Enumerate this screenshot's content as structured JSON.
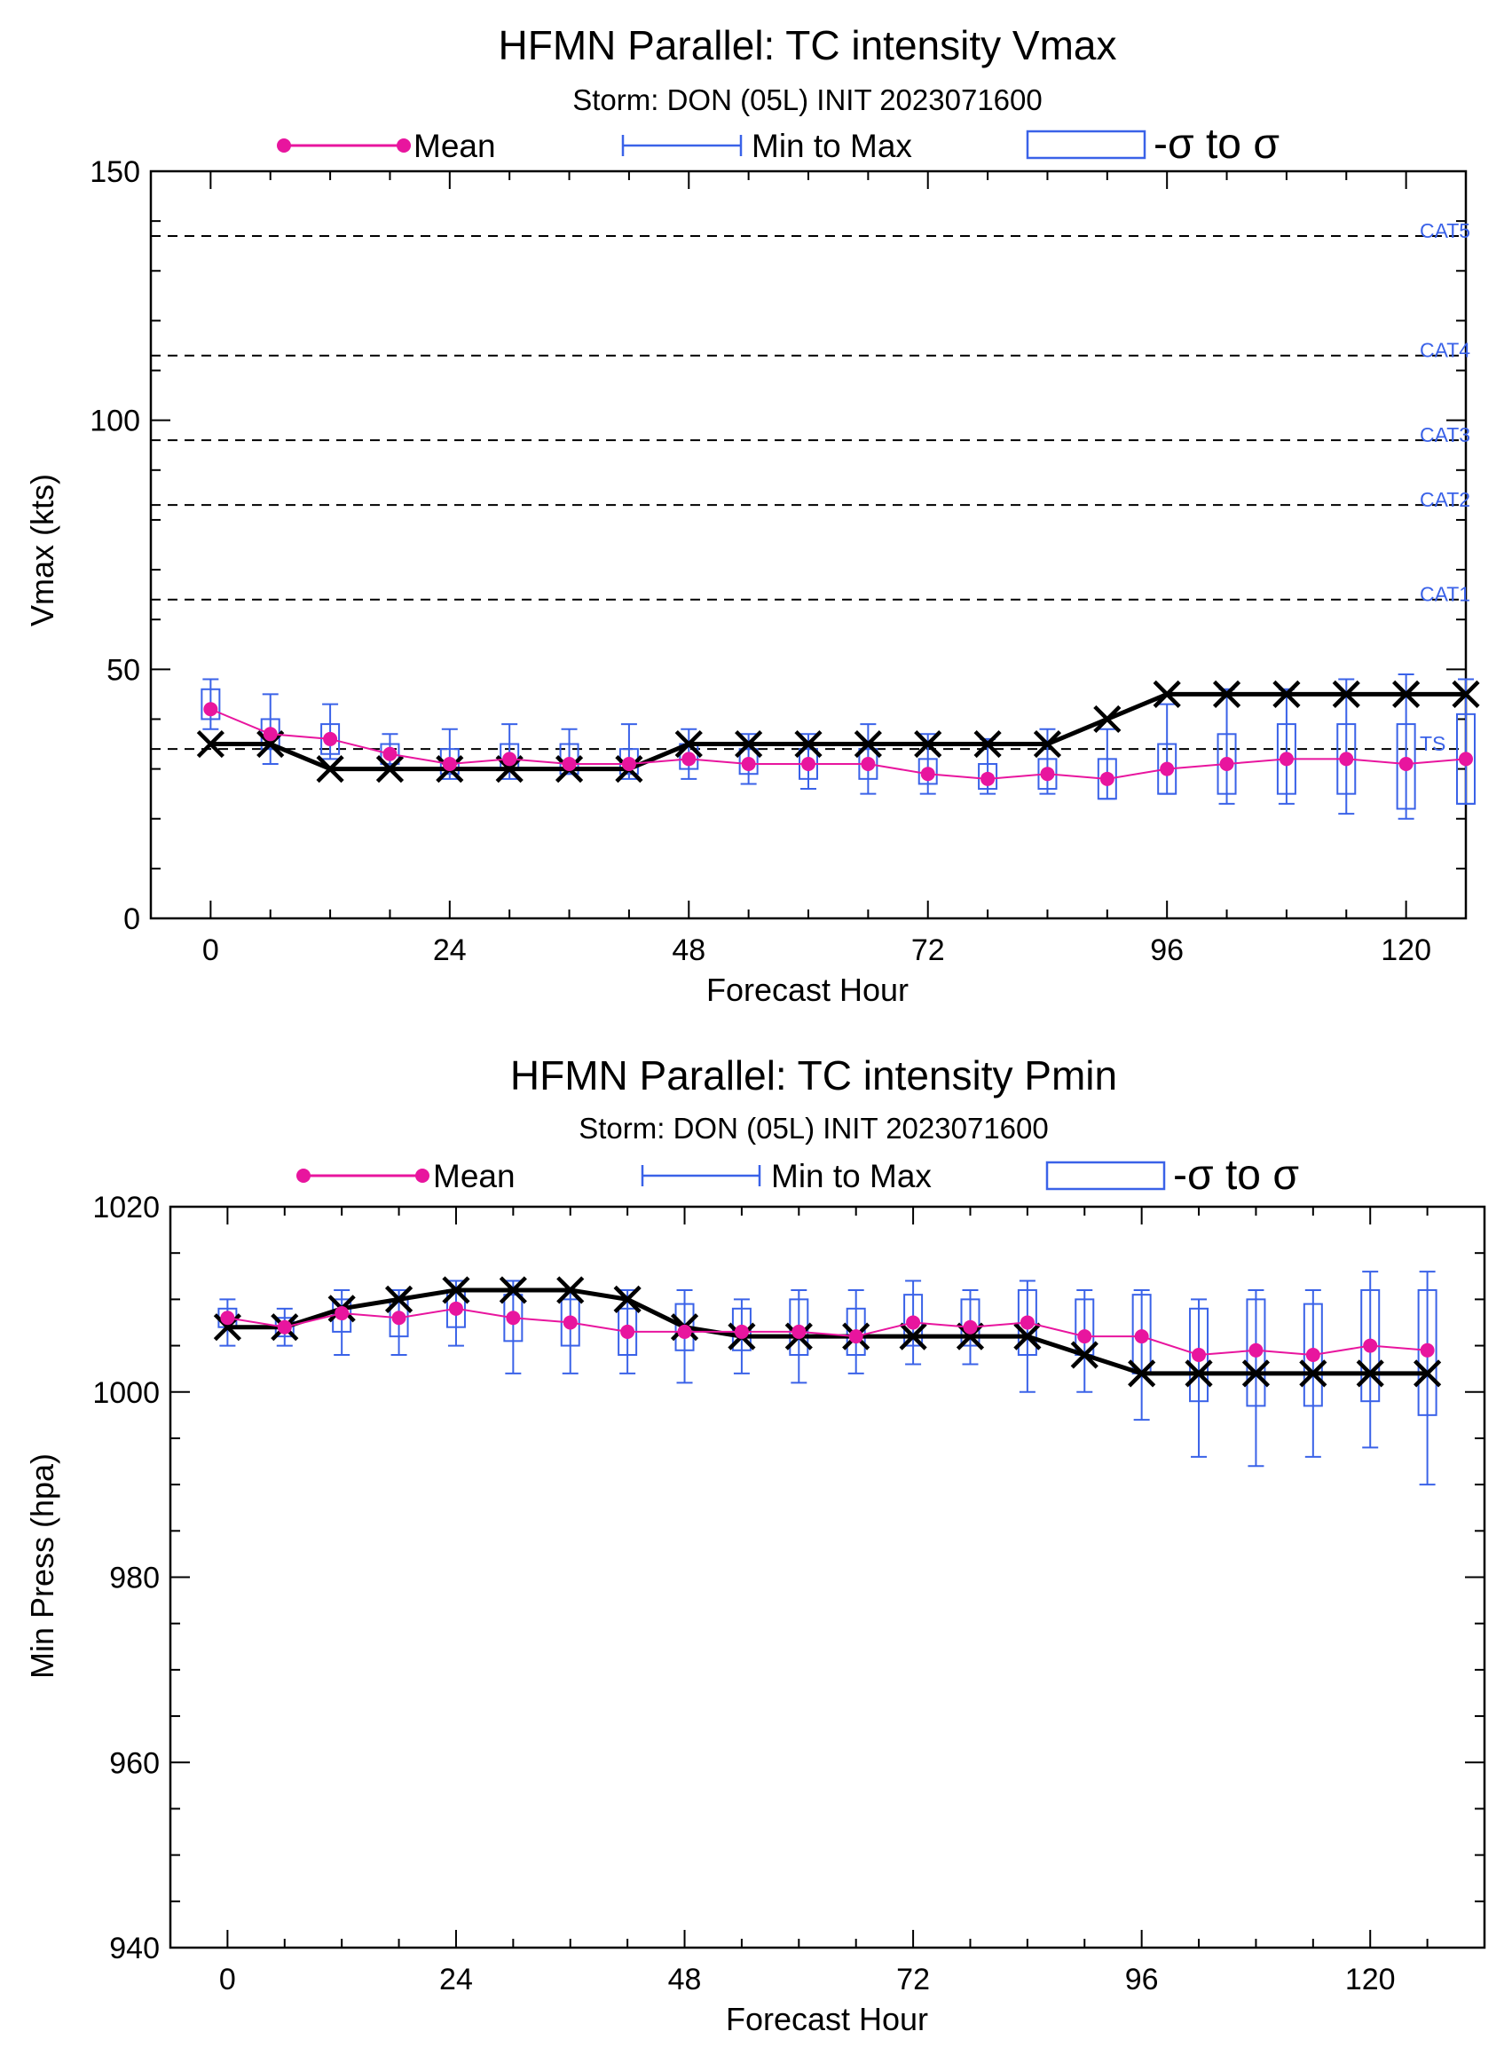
{
  "chart_data": [
    {
      "type": "line",
      "title": "HFMN Parallel: TC intensity Vmax",
      "subtitle": "Storm: DON (05L) INIT 2023071600",
      "legend": {
        "mean": "Mean",
        "minmax": "Min to Max",
        "sigma": "-σ to σ",
        "placement": "top"
      },
      "xlabel": "Forecast Hour",
      "ylabel": "Vmax (kts)",
      "xlim": [
        -6,
        126
      ],
      "ylim": [
        0,
        150
      ],
      "xticks": [
        0,
        24,
        48,
        72,
        96,
        120
      ],
      "yticks": [
        0,
        50,
        100,
        150
      ],
      "xminor_step": 6,
      "yminor_step": 10,
      "thresholds": [
        {
          "label": "CAT5",
          "value": 137
        },
        {
          "label": "CAT4",
          "value": 113
        },
        {
          "label": "CAT3",
          "value": 96
        },
        {
          "label": "CAT2",
          "value": 83
        },
        {
          "label": "CAT1",
          "value": 64
        },
        {
          "label": "TS",
          "value": 34
        }
      ],
      "x": [
        0,
        6,
        12,
        18,
        24,
        30,
        36,
        42,
        48,
        54,
        60,
        66,
        72,
        78,
        84,
        90,
        96,
        102,
        108,
        114,
        120,
        126
      ],
      "series": [
        {
          "name": "Mean",
          "values": [
            42,
            37,
            36,
            33,
            31,
            32,
            31,
            31,
            32,
            31,
            31,
            31,
            29,
            28,
            29,
            28,
            30,
            31,
            32,
            32,
            31,
            32
          ]
        },
        {
          "name": "Min to Max",
          "min": [
            38,
            31,
            32,
            30,
            28,
            28,
            29,
            28,
            28,
            27,
            26,
            25,
            25,
            25,
            25,
            24,
            25,
            23,
            23,
            21,
            20,
            23
          ],
          "max": [
            48,
            45,
            43,
            37,
            38,
            39,
            38,
            39,
            38,
            37,
            37,
            39,
            37,
            36,
            38,
            38,
            43,
            46,
            46,
            48,
            49,
            48
          ]
        },
        {
          "name": "-σ to σ",
          "low": [
            40,
            34,
            33,
            31,
            29,
            30,
            29,
            29,
            30,
            29,
            28,
            28,
            27,
            26,
            26,
            24,
            25,
            25,
            25,
            25,
            22,
            23
          ],
          "high": [
            46,
            40,
            39,
            35,
            34,
            35,
            35,
            34,
            35,
            34,
            34,
            34,
            32,
            31,
            32,
            32,
            35,
            37,
            39,
            39,
            39,
            41
          ]
        },
        {
          "name": "",
          "values": [
            35,
            35,
            30,
            30,
            30,
            30,
            30,
            30,
            35,
            35,
            35,
            35,
            35,
            35,
            35,
            40,
            45,
            45,
            45,
            45,
            45,
            45
          ]
        }
      ]
    },
    {
      "type": "line",
      "title": "HFMN Parallel: TC intensity Pmin",
      "subtitle": "Storm: DON (05L) INIT 2023071600",
      "legend": {
        "mean": "Mean",
        "minmax": "Min to Max",
        "sigma": "-σ to σ",
        "placement": "top"
      },
      "xlabel": "Forecast Hour",
      "ylabel": "Min Press (hpa)",
      "xlim": [
        -6,
        132
      ],
      "ylim": [
        940,
        1020
      ],
      "xticks": [
        0,
        24,
        48,
        72,
        96,
        120
      ],
      "yticks": [
        940,
        960,
        980,
        1000,
        1020
      ],
      "xminor_step": 6,
      "yminor_step": 5,
      "x": [
        0,
        6,
        12,
        18,
        24,
        30,
        36,
        42,
        48,
        54,
        60,
        66,
        72,
        78,
        84,
        90,
        96,
        102,
        108,
        114,
        120,
        126
      ],
      "series": [
        {
          "name": "Mean",
          "values": [
            1008,
            1007,
            1008.5,
            1008,
            1009,
            1008,
            1007.5,
            1006.5,
            1006.5,
            1006.5,
            1006.5,
            1006,
            1007.5,
            1007,
            1007.5,
            1006,
            1006,
            1004,
            1004.5,
            1004,
            1005,
            1004.5
          ]
        },
        {
          "name": "Min to Max",
          "min": [
            1005,
            1005,
            1004,
            1004,
            1005,
            1002,
            1002,
            1002,
            1001,
            1002,
            1001,
            1002,
            1003,
            1003,
            1000,
            1000,
            997,
            993,
            992,
            993,
            994,
            990
          ],
          "max": [
            1010,
            1009,
            1011,
            1011,
            1012,
            1012,
            1011,
            1011,
            1011,
            1010,
            1011,
            1011,
            1012,
            1011,
            1012,
            1011,
            1011,
            1010,
            1011,
            1011,
            1013,
            1013
          ]
        },
        {
          "name": "-σ to σ",
          "low": [
            1007,
            1006,
            1006.5,
            1006,
            1007,
            1005.5,
            1005,
            1004,
            1004.5,
            1004.5,
            1004,
            1004,
            1005,
            1005,
            1004,
            1004,
            1002,
            999,
            998.5,
            998.5,
            999,
            997.5
          ],
          "high": [
            1009,
            1008,
            1010,
            1010,
            1011,
            1010.5,
            1010,
            1009,
            1009.5,
            1009,
            1010,
            1009,
            1010.5,
            1010,
            1011,
            1010,
            1010.5,
            1009,
            1010,
            1009.5,
            1011,
            1011
          ]
        },
        {
          "name": "",
          "values": [
            1007,
            1007,
            1009,
            1010,
            1011,
            1011,
            1011,
            1010,
            1007,
            1006,
            1006,
            1006,
            1006,
            1006,
            1006,
            1004,
            1002,
            1002,
            1002,
            1002,
            1002,
            1002
          ]
        }
      ]
    }
  ]
}
